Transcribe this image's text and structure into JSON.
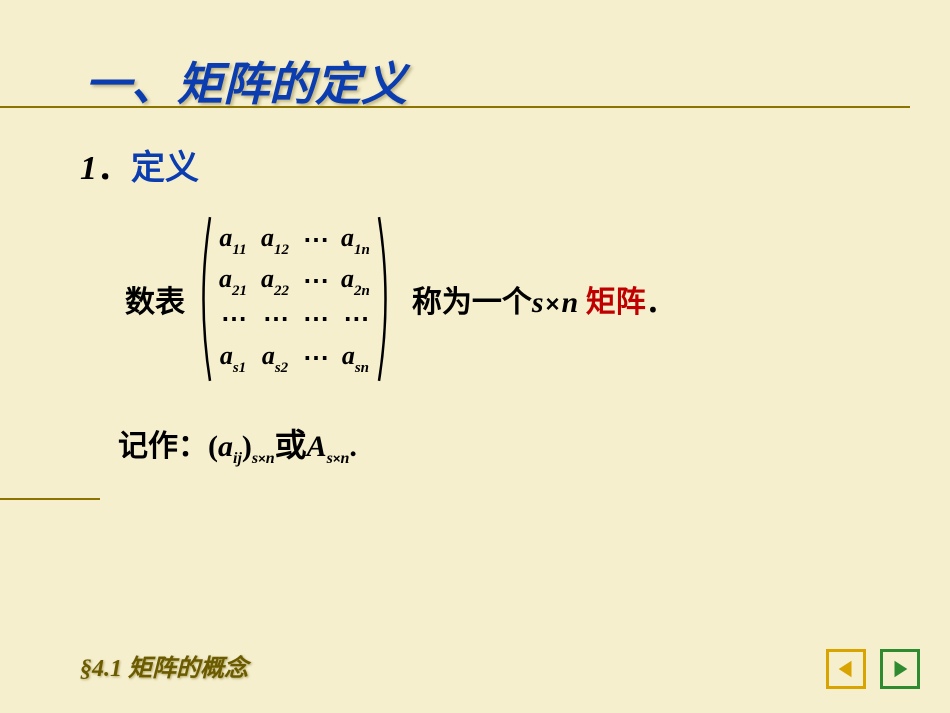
{
  "title": {
    "text": "一、矩阵的定义",
    "color": "#0b3db0"
  },
  "subtitle": {
    "number": "1",
    "sep": "．",
    "text": "定义",
    "color": "#0b3db0"
  },
  "body": {
    "prefix": "数表",
    "matrix": {
      "rows": [
        [
          "a|11",
          "a|12",
          "dots",
          "a|1n"
        ],
        [
          "a|21",
          "a|22",
          "dots",
          "a|2n"
        ],
        [
          "dots",
          "dots",
          "dots",
          "dots"
        ],
        [
          "a|s1",
          "a|s2",
          "dots",
          "a|sn"
        ]
      ],
      "dot_glyph": "⋯"
    },
    "suffix_text1": "称为一个",
    "s_var": "s",
    "n_var": "n",
    "suffix_red": "矩阵",
    "period": "．"
  },
  "notation": {
    "prefix": "记作：",
    "expr1_open": "(",
    "expr1_base": "a",
    "expr1_sub": "ij",
    "expr1_close": ")",
    "expr1_outsub_s": "s",
    "expr1_outsub_n": "n",
    "or": " 或 ",
    "expr2_base": "A",
    "expr2_sub_s": "s",
    "expr2_sub_n": "n",
    "period": "."
  },
  "footer": {
    "text": "§4.1   矩阵的概念"
  },
  "nav": {
    "prev_color": "#d9a300",
    "next_color": "#2f8b2f"
  },
  "colors": {
    "background": "#f5efce",
    "red": "#c00000",
    "black": "#000000"
  }
}
